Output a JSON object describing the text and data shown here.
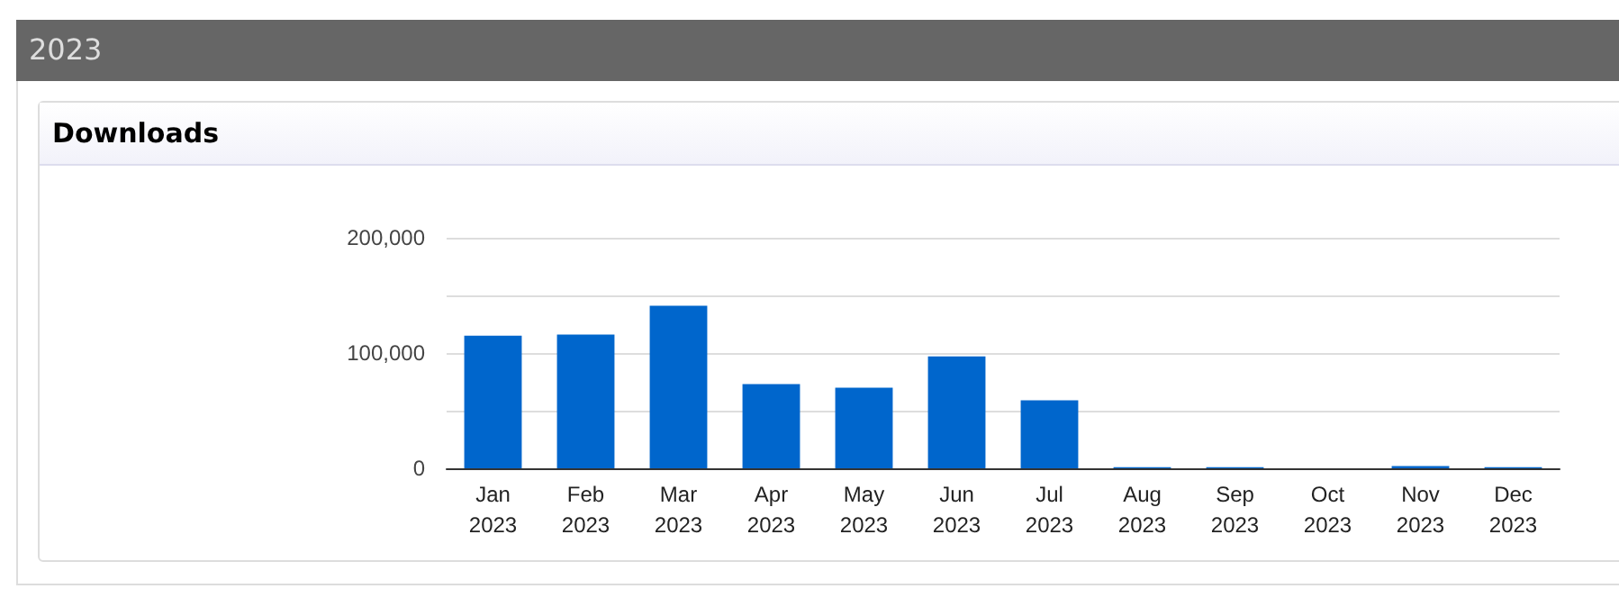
{
  "chart_data": {
    "type": "bar",
    "title": "2023",
    "subtitle": "Downloads",
    "categories": [
      "Jan\n2023",
      "Feb\n2023",
      "Mar\n2023",
      "Apr\n2023",
      "May\n2023",
      "Jun\n2023",
      "Jul\n2023",
      "Aug\n2023",
      "Sep\n2023",
      "Oct\n2023",
      "Nov\n2023",
      "Dec\n2023"
    ],
    "values": [
      115000,
      116000,
      141000,
      73000,
      70000,
      97000,
      59000,
      1000,
      1000,
      0,
      2000,
      1000
    ],
    "color": "#0066cc",
    "ylim": [
      0,
      200000
    ],
    "yticks": [
      {
        "value": 0,
        "label": "0"
      },
      {
        "value": 50000,
        "label": null
      },
      {
        "value": 100000,
        "label": "100,000"
      },
      {
        "value": 150000,
        "label": null
      },
      {
        "value": 200000,
        "label": "200,000"
      }
    ],
    "grid": "y"
  }
}
